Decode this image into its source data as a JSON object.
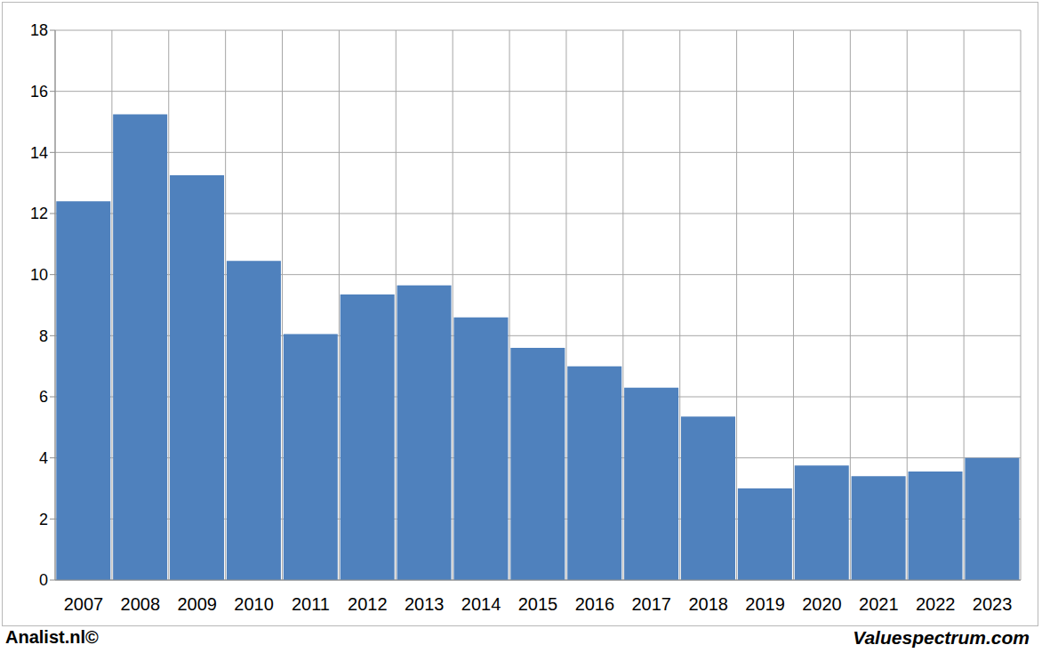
{
  "chart_data": {
    "type": "bar",
    "categories": [
      "2007",
      "2008",
      "2009",
      "2010",
      "2011",
      "2012",
      "2013",
      "2014",
      "2015",
      "2016",
      "2017",
      "2018",
      "2019",
      "2020",
      "2021",
      "2022",
      "2023"
    ],
    "values": [
      12.4,
      15.25,
      13.25,
      10.45,
      8.05,
      9.35,
      9.65,
      8.6,
      7.6,
      7.0,
      6.3,
      5.35,
      3.0,
      3.75,
      3.4,
      3.55,
      4.0
    ],
    "color": "#4f81bd",
    "ylim": [
      0,
      18
    ],
    "yticks": [
      0,
      2,
      4,
      6,
      8,
      10,
      12,
      14,
      16,
      18
    ],
    "grid": true,
    "annotations": [
      "Analist.nl©",
      "Valuespectrum.com"
    ]
  }
}
